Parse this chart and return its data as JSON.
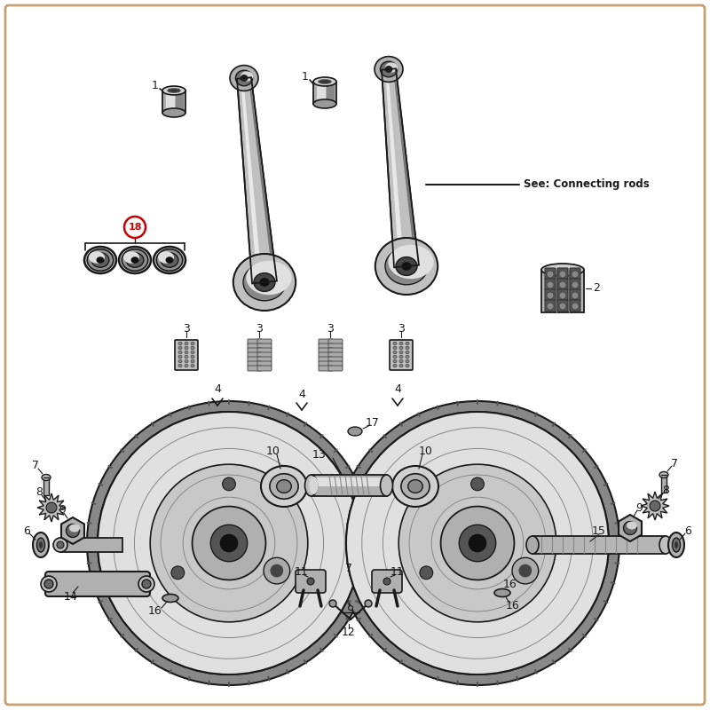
{
  "bg_color": "#ffffff",
  "border_color": "#c8a070",
  "fig_width": 8.0,
  "fig_height": 8.0,
  "dpi": 100,
  "dark": "#1a1a1a",
  "mid": "#888888",
  "light": "#cccccc",
  "vlight": "#e8e8e8",
  "red": "#cc0000",
  "rod_color": "#aaaaaa",
  "fw_outer": "#888888",
  "fw_disc": "#d0d0d0",
  "fw_inner": "#b0b0b0"
}
